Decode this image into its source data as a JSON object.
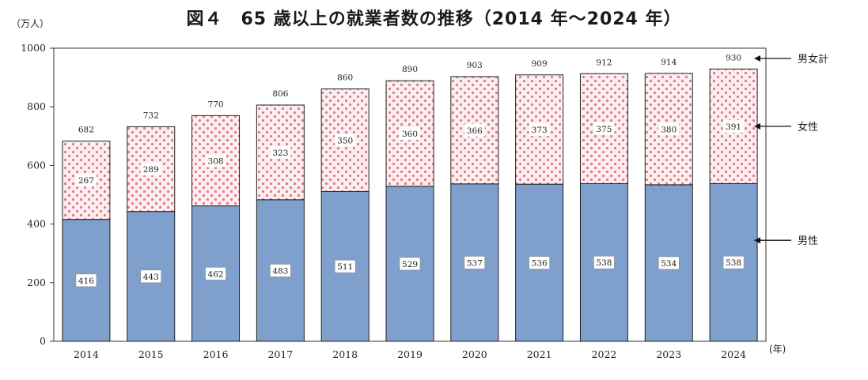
{
  "chart_data": {
    "type": "bar",
    "title": "図４　65 歳以上の就業者数の推移（2014 年～2024 年）",
    "y_unit": "（万人）",
    "x_unit": "(年)",
    "categories": [
      "2014",
      "2015",
      "2016",
      "2017",
      "2018",
      "2019",
      "2020",
      "2021",
      "2022",
      "2023",
      "2024"
    ],
    "series": [
      {
        "name": "男性",
        "values": [
          416,
          443,
          462,
          483,
          511,
          529,
          537,
          536,
          538,
          534,
          538
        ],
        "color": "#7f9fcc"
      },
      {
        "name": "女性",
        "values": [
          267,
          289,
          308,
          323,
          350,
          360,
          366,
          373,
          375,
          380,
          391
        ],
        "color": "#f3d2d6"
      }
    ],
    "totals": [
      682,
      732,
      770,
      806,
      860,
      890,
      903,
      909,
      912,
      914,
      930
    ],
    "totals_label": "男女計",
    "ylim": [
      0,
      1000
    ],
    "yticks": [
      0,
      200,
      400,
      600,
      800,
      1000
    ],
    "stacked": true,
    "grid": false
  }
}
